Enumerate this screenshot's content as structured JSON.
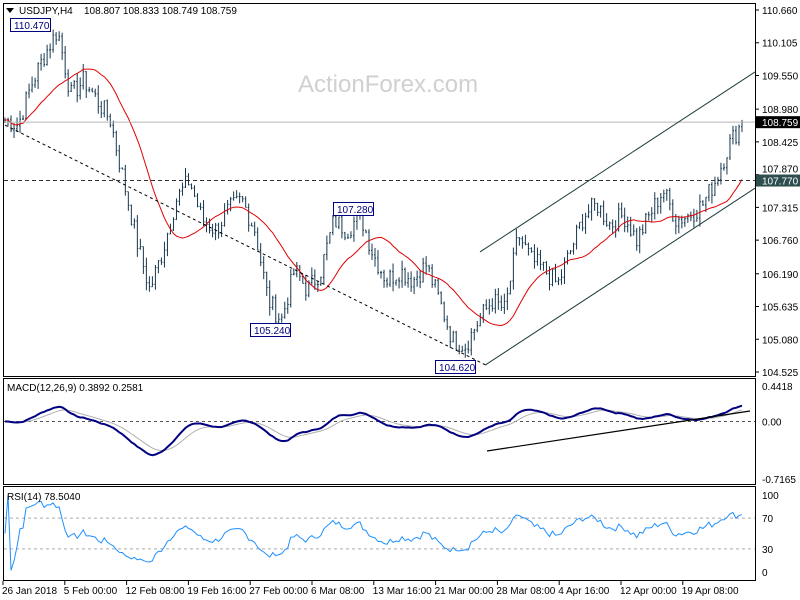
{
  "header": {
    "symbol": "USDJPY,H4",
    "ohlc": "108.807 108.833 108.749 108.759"
  },
  "watermark": "ActionForex.com",
  "colors": {
    "bars": "#16384f",
    "ma": "#e00000",
    "macd": "#000080",
    "signal": "#b0b0b0",
    "rsi": "#1e90ff",
    "lines": "#1e3c3c"
  },
  "chart_data": [
    {
      "type": "line",
      "title": "USDJPY,H4",
      "y_ticks": [
        "110.660",
        "110.105",
        "109.550",
        "108.980",
        "108.425",
        "107.870",
        "107.315",
        "106.760",
        "106.190",
        "105.635",
        "105.080",
        "104.525"
      ],
      "ylim": [
        104.525,
        110.66
      ],
      "x_ticks": [
        "26 Jan 2018",
        "5 Feb 00:00",
        "12 Feb 08:00",
        "19 Feb 16:00",
        "27 Feb 00:00",
        "6 Mar 08:00",
        "13 Mar 16:00",
        "21 Mar 00:00",
        "28 Mar 08:00",
        "4 Apr 16:00",
        "12 Apr 00:00",
        "19 Apr 08:00"
      ],
      "close_path": [
        108.8,
        108.71,
        109.39,
        109.9,
        110.32,
        109.22,
        109.47,
        109.13,
        108.8,
        107.78,
        106.76,
        105.91,
        106.59,
        107.44,
        107.78,
        107.1,
        106.93,
        107.27,
        107.44,
        106.93,
        105.74,
        105.4,
        106.25,
        105.91,
        106.25,
        107.1,
        106.93,
        107.19,
        106.51,
        106.08,
        106.25,
        106.08,
        106.34,
        105.74,
        105.07,
        104.98,
        105.4,
        105.74,
        105.57,
        106.85,
        106.42,
        106.25,
        106.0,
        106.59,
        107.19,
        107.36,
        107.02,
        107.19,
        106.76,
        107.19,
        107.61,
        107.1,
        107.19,
        107.36,
        107.78,
        108.37,
        108.759
      ],
      "current_price": {
        "label": "108.759",
        "value": 108.759
      },
      "support_level": {
        "label": "107.770",
        "value": 107.77
      },
      "annotations": [
        {
          "label": "110.470",
          "value": 110.47
        },
        {
          "label": "107.280",
          "value": 107.28
        },
        {
          "label": "105.240",
          "value": 105.24
        },
        {
          "label": "104.620",
          "value": 104.62
        }
      ],
      "trendlines": {
        "falling_dashed": [
          108.71,
          104.65
        ],
        "channel_upper": [
          106.56,
          109.61
        ],
        "channel_lower": [
          104.64,
          107.64
        ]
      }
    },
    {
      "type": "line",
      "title": "MACD(12,26,9) 0.3892 0.2581",
      "y_ticks": [
        "0.4418",
        "0.00",
        "-0.7165"
      ],
      "ylim": [
        -0.7165,
        0.4418
      ]
    },
    {
      "type": "line",
      "title": "RSI(14) 78.5040",
      "y_ticks": [
        "100",
        "70",
        "30",
        "0"
      ],
      "ylim": [
        0,
        100
      ],
      "levels": [
        70,
        30
      ]
    }
  ]
}
